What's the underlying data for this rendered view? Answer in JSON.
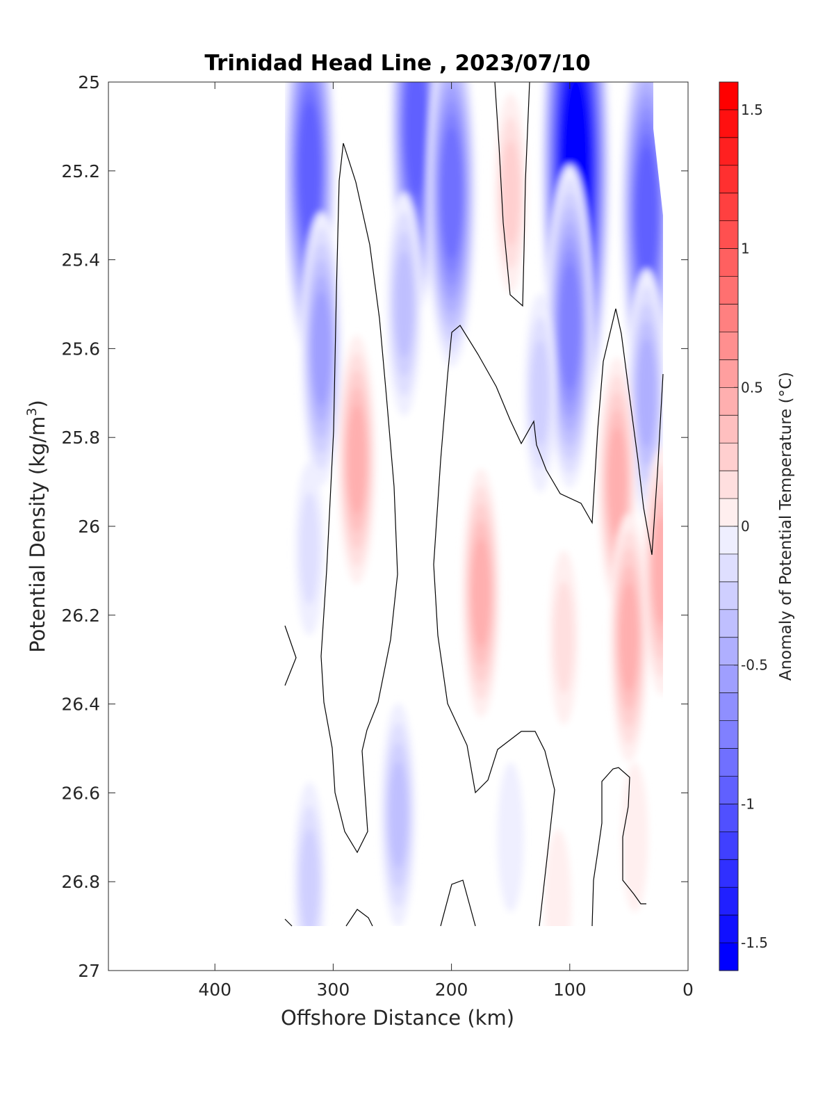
{
  "chart_data": {
    "type": "heatmap",
    "title": "Trinidad Head Line , 2023/07/10",
    "xlabel": "Offshore Distance (km)",
    "ylabel_main": "Potential Density (kg/m",
    "ylabel_sup": "3",
    "ylabel_close": ")",
    "colorbar_label": "Anomaly of Potential Temperature (°C)",
    "xlim": [
      490,
      0
    ],
    "xdir": "reversed",
    "ylim": [
      25,
      27
    ],
    "ydir": "reversed",
    "clim": [
      -1.6,
      1.6
    ],
    "contour_step": 0.1,
    "zero_contour": true,
    "x_ticks": [
      400,
      300,
      200,
      100,
      0
    ],
    "x_tick_labels": [
      "400",
      "300",
      "200",
      "100",
      "0"
    ],
    "y_ticks": [
      25,
      25.2,
      25.4,
      25.6,
      25.8,
      26,
      26.2,
      26.4,
      26.6,
      26.8,
      27
    ],
    "y_tick_labels": [
      "25",
      "25.2",
      "25.4",
      "25.6",
      "25.8",
      "26",
      "26.2",
      "26.4",
      "26.6",
      "26.8",
      "27"
    ],
    "colorbar_ticks": [
      1.5,
      1,
      0.5,
      0,
      -0.5,
      -1,
      -1.5
    ],
    "colorbar_tick_labels": [
      "1.5",
      "1",
      "0.5",
      "0",
      "-0.5",
      "-1",
      "-1.5"
    ],
    "colors": {
      "positive": "#ff0000",
      "negative": "#0000ff",
      "zero": "#ffffff",
      "axis": "#262626",
      "contour": "#000000"
    },
    "data_extent_x": [
      20,
      340
    ],
    "data_extent_y": [
      25,
      26.9
    ],
    "anomaly_features": [
      {
        "x": 320,
        "y": 25.2,
        "value": -1.0
      },
      {
        "x": 310,
        "y": 25.6,
        "value": -0.6
      },
      {
        "x": 320,
        "y": 26.05,
        "value": -0.2
      },
      {
        "x": 230,
        "y": 25.1,
        "value": -1.0
      },
      {
        "x": 200,
        "y": 25.25,
        "value": -0.9
      },
      {
        "x": 240,
        "y": 25.5,
        "value": -0.4
      },
      {
        "x": 150,
        "y": 25.25,
        "value": 0.3
      },
      {
        "x": 95,
        "y": 25.2,
        "value": -1.55
      },
      {
        "x": 100,
        "y": 25.55,
        "value": -0.8
      },
      {
        "x": 125,
        "y": 25.7,
        "value": -0.3
      },
      {
        "x": 35,
        "y": 25.3,
        "value": -1.0
      },
      {
        "x": 35,
        "y": 25.7,
        "value": -0.5
      },
      {
        "x": 280,
        "y": 25.85,
        "value": 0.5
      },
      {
        "x": 175,
        "y": 26.15,
        "value": 0.45
      },
      {
        "x": 105,
        "y": 26.25,
        "value": 0.2
      },
      {
        "x": 60,
        "y": 25.9,
        "value": 0.45
      },
      {
        "x": 50,
        "y": 26.25,
        "value": 0.45
      },
      {
        "x": 22,
        "y": 26.1,
        "value": 0.5
      },
      {
        "x": 245,
        "y": 26.65,
        "value": -0.4
      },
      {
        "x": 320,
        "y": 26.8,
        "value": -0.3
      },
      {
        "x": 150,
        "y": 26.7,
        "value": -0.15
      },
      {
        "x": 110,
        "y": 26.85,
        "value": 0.15
      },
      {
        "x": 45,
        "y": 26.7,
        "value": 0.1
      }
    ]
  }
}
